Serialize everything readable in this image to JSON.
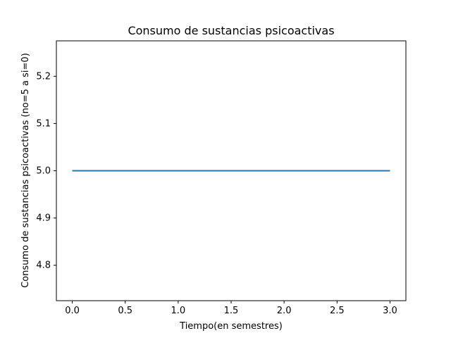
{
  "chart_data": {
    "type": "line",
    "title": "Consumo de sustancias psicoactivas",
    "xlabel": "Tiempo(en semestres)",
    "ylabel": "Consumo de sustancias psicoactivas (no=5 a si=0)",
    "x": [
      0.0,
      1.0,
      2.0,
      3.0
    ],
    "series": [
      {
        "values": [
          5.0,
          5.0,
          5.0,
          5.0
        ],
        "color": "#1f77b4"
      }
    ],
    "xlim": [
      -0.15,
      3.15
    ],
    "ylim": [
      4.725,
      5.275
    ],
    "xticks": [
      0.0,
      0.5,
      1.0,
      1.5,
      2.0,
      2.5,
      3.0
    ],
    "xtick_labels": [
      "0.0",
      "0.5",
      "1.0",
      "1.5",
      "2.0",
      "2.5",
      "3.0"
    ],
    "yticks": [
      4.8,
      4.9,
      5.0,
      5.1,
      5.2
    ],
    "ytick_labels": [
      "4.8",
      "4.9",
      "5.0",
      "5.1",
      "5.2"
    ],
    "grid": false,
    "legend": false
  }
}
